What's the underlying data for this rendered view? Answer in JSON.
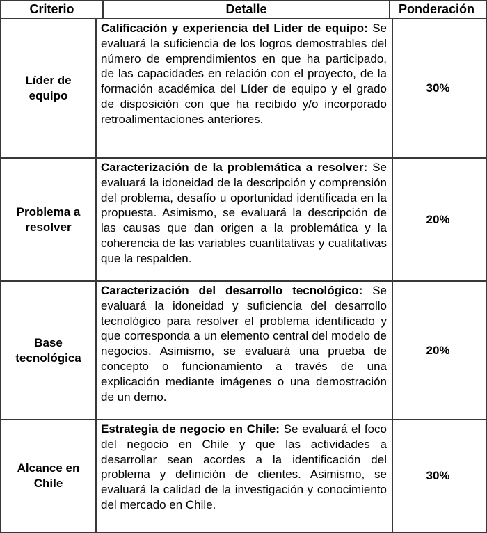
{
  "header": {
    "criterio": "Criterio",
    "detalle": "Detalle",
    "ponderacion": "Ponderación"
  },
  "rows": [
    {
      "criterio": "Líder de equipo",
      "detalle_lead": "Calificación y experiencia del Líder de equipo:",
      "detalle_body": " Se evaluará la suficiencia de los logros demostrables del número de emprendimientos en que ha participado, de las capacidades en relación con el proyecto, de la formación académica del Líder de equipo y el grado de disposición con que ha recibido y/o incorporado retroalimentaciones anteriores.",
      "ponderacion": "30%"
    },
    {
      "criterio": "Problema a resolver",
      "detalle_lead": "Caracterización de la problemática a resolver:",
      "detalle_body": " Se evaluará la idoneidad de la descripción y comprensión del problema, desafío u oportunidad identificada en la propuesta. Asimismo, se evaluará la descripción de las causas que dan origen a la problemática y la coherencia de las variables cuantitativas y cualitativas que la respalden.",
      "ponderacion": "20%"
    },
    {
      "criterio": "Base tecnológica",
      "detalle_lead": "Caracterización del desarrollo tecnológico:",
      "detalle_body": " Se evaluará la idoneidad y suficiencia del desarrollo tecnológico para resolver el problema identificado y que corresponda a un elemento central del modelo de negocios. Asimismo, se evaluará una prueba de concepto o funcionamiento a través de una explicación mediante imágenes o una demostración de un demo.",
      "ponderacion": "20%"
    },
    {
      "criterio": "Alcance en Chile",
      "detalle_lead": "Estrategia de negocio en Chile:",
      "detalle_body": " Se evaluará el foco del negocio en Chile y que las actividades a desarrollar sean acordes a la identificación del problema y definición de clientes. Asimismo, se evaluará la calidad de la investigación y conocimiento del mercado en Chile.",
      "ponderacion": "30%"
    }
  ],
  "colors": {
    "border": "#383838",
    "text": "#000000",
    "background": "#ffffff"
  }
}
